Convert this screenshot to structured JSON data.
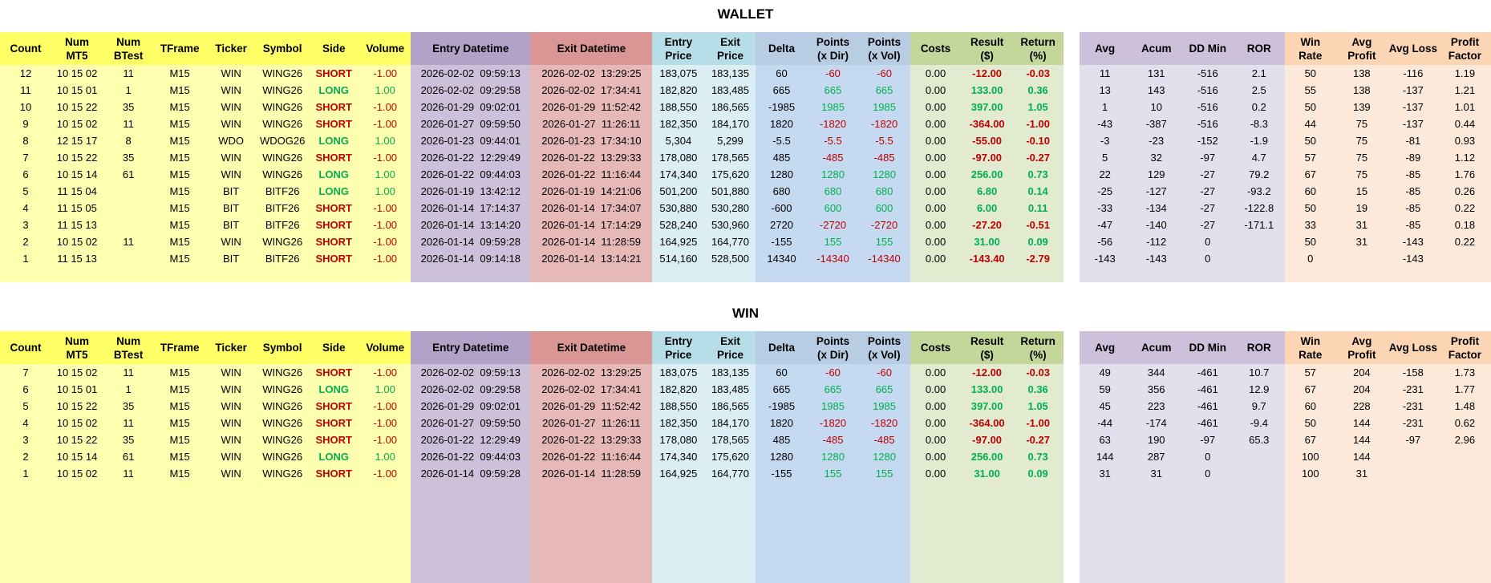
{
  "sections": [
    {
      "title": "WALLET",
      "headers": [
        "Count",
        "Num\nMT5",
        "Num\nBTest",
        "TFrame",
        "Ticker",
        "Symbol",
        "Side",
        "Volume",
        "Entry Datetime",
        "Exit Datetime",
        "Entry\nPrice",
        "Exit\nPrice",
        "Delta",
        "Points\n(x Dir)",
        "Points\n(x Vol)",
        "Costs",
        "Result\n($)",
        "Return\n(%)",
        "Avg",
        "Acum",
        "DD Min",
        "ROR",
        "Win\nRate",
        "Avg\nProfit",
        "Avg Loss",
        "Profit\nFactor"
      ],
      "rows": [
        [
          "12",
          "10 15 02",
          "11",
          "M15",
          "WIN",
          "WING26",
          "SHORT",
          "-1.00",
          "2026-02-02  09:59:13",
          "2026-02-02  13:29:25",
          "183,075",
          "183,135",
          "60",
          "-60",
          "-60",
          "0.00",
          "-12.00",
          "-0.03",
          "11",
          "131",
          "-516",
          "2.1",
          "50",
          "138",
          "-116",
          "1.19"
        ],
        [
          "11",
          "10 15 01",
          "1",
          "M15",
          "WIN",
          "WING26",
          "LONG",
          "1.00",
          "2026-02-02  09:29:58",
          "2026-02-02  17:34:41",
          "182,820",
          "183,485",
          "665",
          "665",
          "665",
          "0.00",
          "133.00",
          "0.36",
          "13",
          "143",
          "-516",
          "2.5",
          "55",
          "138",
          "-137",
          "1.21"
        ],
        [
          "10",
          "10 15 22",
          "35",
          "M15",
          "WIN",
          "WING26",
          "SHORT",
          "-1.00",
          "2026-01-29  09:02:01",
          "2026-01-29  11:52:42",
          "188,550",
          "186,565",
          "-1985",
          "1985",
          "1985",
          "0.00",
          "397.00",
          "1.05",
          "1",
          "10",
          "-516",
          "0.2",
          "50",
          "139",
          "-137",
          "1.01"
        ],
        [
          "9",
          "10 15 02",
          "11",
          "M15",
          "WIN",
          "WING26",
          "SHORT",
          "-1.00",
          "2026-01-27  09:59:50",
          "2026-01-27  11:26:11",
          "182,350",
          "184,170",
          "1820",
          "-1820",
          "-1820",
          "0.00",
          "-364.00",
          "-1.00",
          "-43",
          "-387",
          "-516",
          "-8.3",
          "44",
          "75",
          "-137",
          "0.44"
        ],
        [
          "8",
          "12 15 17",
          "8",
          "M15",
          "WDO",
          "WDOG26",
          "LONG",
          "1.00",
          "2026-01-23  09:44:01",
          "2026-01-23  17:34:10",
          "5,304",
          "5,299",
          "-5.5",
          "-5.5",
          "-5.5",
          "0.00",
          "-55.00",
          "-0.10",
          "-3",
          "-23",
          "-152",
          "-1.9",
          "50",
          "75",
          "-81",
          "0.93"
        ],
        [
          "7",
          "10 15 22",
          "35",
          "M15",
          "WIN",
          "WING26",
          "SHORT",
          "-1.00",
          "2026-01-22  12:29:49",
          "2026-01-22  13:29:33",
          "178,080",
          "178,565",
          "485",
          "-485",
          "-485",
          "0.00",
          "-97.00",
          "-0.27",
          "5",
          "32",
          "-97",
          "4.7",
          "57",
          "75",
          "-89",
          "1.12"
        ],
        [
          "6",
          "10 15 14",
          "61",
          "M15",
          "WIN",
          "WING26",
          "LONG",
          "1.00",
          "2026-01-22  09:44:03",
          "2026-01-22  11:16:44",
          "174,340",
          "175,620",
          "1280",
          "1280",
          "1280",
          "0.00",
          "256.00",
          "0.73",
          "22",
          "129",
          "-27",
          "79.2",
          "67",
          "75",
          "-85",
          "1.76"
        ],
        [
          "5",
          "11 15 04",
          null,
          "M15",
          "BIT",
          "BITF26",
          "LONG",
          "1.00",
          "2026-01-19  13:42:12",
          "2026-01-19  14:21:06",
          "501,200",
          "501,880",
          "680",
          "680",
          "680",
          "0.00",
          "6.80",
          "0.14",
          "-25",
          "-127",
          "-27",
          "-93.2",
          "60",
          "15",
          "-85",
          "0.26"
        ],
        [
          "4",
          "11 15 05",
          null,
          "M15",
          "BIT",
          "BITF26",
          "SHORT",
          "-1.00",
          "2026-01-14  17:14:37",
          "2026-01-14  17:34:07",
          "530,880",
          "530,280",
          "-600",
          "600",
          "600",
          "0.00",
          "6.00",
          "0.11",
          "-33",
          "-134",
          "-27",
          "-122.8",
          "50",
          "19",
          "-85",
          "0.22"
        ],
        [
          "3",
          "11 15 13",
          null,
          "M15",
          "BIT",
          "BITF26",
          "SHORT",
          "-1.00",
          "2026-01-14  13:14:20",
          "2026-01-14  17:14:29",
          "528,240",
          "530,960",
          "2720",
          "-2720",
          "-2720",
          "0.00",
          "-27.20",
          "-0.51",
          "-47",
          "-140",
          "-27",
          "-171.1",
          "33",
          "31",
          "-85",
          "0.18"
        ],
        [
          "2",
          "10 15 02",
          "11",
          "M15",
          "WIN",
          "WING26",
          "SHORT",
          "-1.00",
          "2026-01-14  09:59:28",
          "2026-01-14  11:28:59",
          "164,925",
          "164,770",
          "-155",
          "155",
          "155",
          "0.00",
          "31.00",
          "0.09",
          "-56",
          "-112",
          "0",
          null,
          "50",
          "31",
          "-143",
          "0.22"
        ],
        [
          "1",
          "11 15 13",
          null,
          "M15",
          "BIT",
          "BITF26",
          "SHORT",
          "-1.00",
          "2026-01-14  09:14:18",
          "2026-01-14  13:14:21",
          "514,160",
          "528,500",
          "14340",
          "-14340",
          "-14340",
          "0.00",
          "-143.40",
          "-2.79",
          "-143",
          "-143",
          "0",
          null,
          "0",
          null,
          "-143",
          null
        ]
      ]
    },
    {
      "title": "WIN",
      "headers": [
        "Count",
        "Num\nMT5",
        "Num\nBTest",
        "TFrame",
        "Ticker",
        "Symbol",
        "Side",
        "Volume",
        "Entry Datetime",
        "Exit Datetime",
        "Entry\nPrice",
        "Exit\nPrice",
        "Delta",
        "Points\n(x Dir)",
        "Points\n(x Vol)",
        "Costs",
        "Result\n($)",
        "Return\n(%)",
        "Avg",
        "Acum",
        "DD Min",
        "ROR",
        "Win\nRate",
        "Avg\nProfit",
        "Avg Loss",
        "Profit\nFactor"
      ],
      "rows": [
        [
          "7",
          "10 15 02",
          "11",
          "M15",
          "WIN",
          "WING26",
          "SHORT",
          "-1.00",
          "2026-02-02  09:59:13",
          "2026-02-02  13:29:25",
          "183,075",
          "183,135",
          "60",
          "-60",
          "-60",
          "0.00",
          "-12.00",
          "-0.03",
          "49",
          "344",
          "-461",
          "10.7",
          "57",
          "204",
          "-158",
          "1.73"
        ],
        [
          "6",
          "10 15 01",
          "1",
          "M15",
          "WIN",
          "WING26",
          "LONG",
          "1.00",
          "2026-02-02  09:29:58",
          "2026-02-02  17:34:41",
          "182,820",
          "183,485",
          "665",
          "665",
          "665",
          "0.00",
          "133.00",
          "0.36",
          "59",
          "356",
          "-461",
          "12.9",
          "67",
          "204",
          "-231",
          "1.77"
        ],
        [
          "5",
          "10 15 22",
          "35",
          "M15",
          "WIN",
          "WING26",
          "SHORT",
          "-1.00",
          "2026-01-29  09:02:01",
          "2026-01-29  11:52:42",
          "188,550",
          "186,565",
          "-1985",
          "1985",
          "1985",
          "0.00",
          "397.00",
          "1.05",
          "45",
          "223",
          "-461",
          "9.7",
          "60",
          "228",
          "-231",
          "1.48"
        ],
        [
          "4",
          "10 15 02",
          "11",
          "M15",
          "WIN",
          "WING26",
          "SHORT",
          "-1.00",
          "2026-01-27  09:59:50",
          "2026-01-27  11:26:11",
          "182,350",
          "184,170",
          "1820",
          "-1820",
          "-1820",
          "0.00",
          "-364.00",
          "-1.00",
          "-44",
          "-174",
          "-461",
          "-9.4",
          "50",
          "144",
          "-231",
          "0.62"
        ],
        [
          "3",
          "10 15 22",
          "35",
          "M15",
          "WIN",
          "WING26",
          "SHORT",
          "-1.00",
          "2026-01-22  12:29:49",
          "2026-01-22  13:29:33",
          "178,080",
          "178,565",
          "485",
          "-485",
          "-485",
          "0.00",
          "-97.00",
          "-0.27",
          "63",
          "190",
          "-97",
          "65.3",
          "67",
          "144",
          "-97",
          "2.96"
        ],
        [
          "2",
          "10 15 14",
          "61",
          "M15",
          "WIN",
          "WING26",
          "LONG",
          "1.00",
          "2026-01-22  09:44:03",
          "2026-01-22  11:16:44",
          "174,340",
          "175,620",
          "1280",
          "1280",
          "1280",
          "0.00",
          "256.00",
          "0.73",
          "144",
          "287",
          "0",
          null,
          "100",
          "144",
          null,
          null
        ],
        [
          "1",
          "10 15 02",
          "11",
          "M15",
          "WIN",
          "WING26",
          "SHORT",
          "-1.00",
          "2026-01-14  09:59:28",
          "2026-01-14  11:28:59",
          "164,925",
          "164,770",
          "-155",
          "155",
          "155",
          "0.00",
          "31.00",
          "0.09",
          "31",
          "31",
          "0",
          null,
          "100",
          "31",
          null,
          null
        ]
      ]
    }
  ]
}
